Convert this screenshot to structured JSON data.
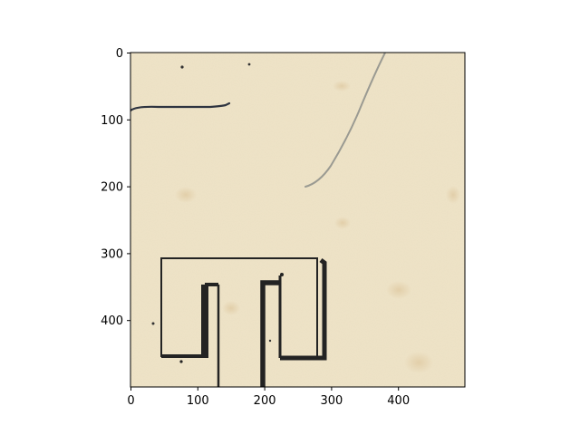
{
  "figure": {
    "kind": "image-with-axes",
    "image_description_tag": "scanned-sketch",
    "x_axis": {
      "ticks": [
        0,
        100,
        200,
        300,
        400
      ],
      "range": [
        0,
        500
      ]
    },
    "y_axis": {
      "ticks": [
        0,
        100,
        200,
        300,
        400
      ],
      "range": [
        0,
        500
      ],
      "inverted": true
    },
    "colors": {
      "paper": "#efe4c8",
      "ink": "#232323",
      "pencil": "#9a9a92",
      "frame": "#000000"
    }
  }
}
